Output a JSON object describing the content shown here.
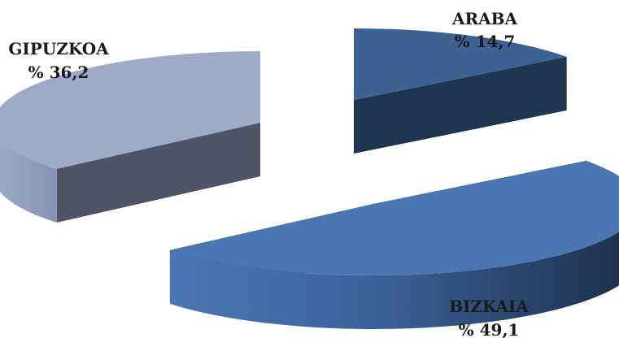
{
  "chart_data": {
    "type": "pie",
    "style": "3d-exploded",
    "slices": [
      {
        "name": "ARABA",
        "value_label": "% 14,7",
        "value": 14.7,
        "color": "#3b6293",
        "side_color": "#203552"
      },
      {
        "name": "BIZKAIA",
        "value_label": "% 49,1",
        "value": 49.1,
        "color": "#4a77b2",
        "side_color": "#243a59"
      },
      {
        "name": "GIPUZKOA",
        "value_label": "% 36,2",
        "value": 36.2,
        "color": "#9dabc8",
        "side_color": "#4f5467"
      }
    ]
  }
}
